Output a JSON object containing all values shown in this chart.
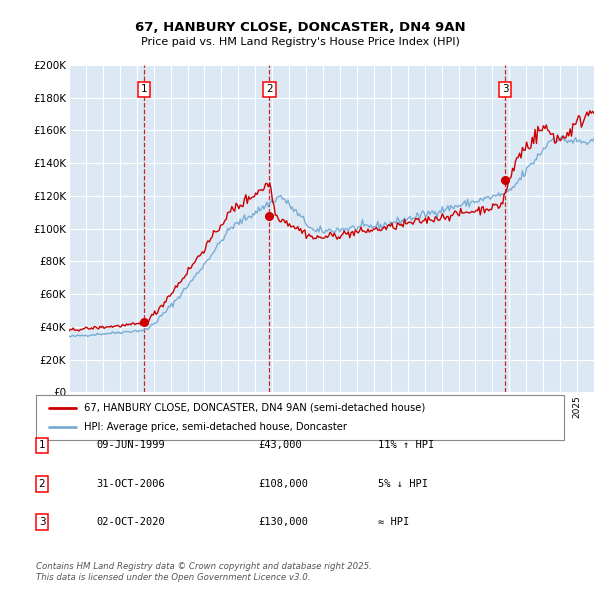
{
  "title": "67, HANBURY CLOSE, DONCASTER, DN4 9AN",
  "subtitle": "Price paid vs. HM Land Registry's House Price Index (HPI)",
  "bg_color": "#dce9f5",
  "hpi_color": "#7aadd4",
  "price_color": "#cc0000",
  "vline_color": "#cc0000",
  "purchases": [
    {
      "date": 1999.44,
      "price": 43000,
      "label": "1"
    },
    {
      "date": 2006.83,
      "price": 108000,
      "label": "2"
    },
    {
      "date": 2020.75,
      "price": 130000,
      "label": "3"
    }
  ],
  "legend_label_price": "67, HANBURY CLOSE, DONCASTER, DN4 9AN (semi-detached house)",
  "legend_label_hpi": "HPI: Average price, semi-detached house, Doncaster",
  "table": [
    [
      "1",
      "09-JUN-1999",
      "£43,000",
      "11% ↑ HPI"
    ],
    [
      "2",
      "31-OCT-2006",
      "£108,000",
      "5% ↓ HPI"
    ],
    [
      "3",
      "02-OCT-2020",
      "£130,000",
      "≈ HPI"
    ]
  ],
  "footer": "Contains HM Land Registry data © Crown copyright and database right 2025.\nThis data is licensed under the Open Government Licence v3.0.",
  "ylim": [
    0,
    200000
  ],
  "yticks": [
    0,
    20000,
    40000,
    60000,
    80000,
    100000,
    120000,
    140000,
    160000,
    180000,
    200000
  ],
  "xstart": 1995,
  "xend": 2026
}
